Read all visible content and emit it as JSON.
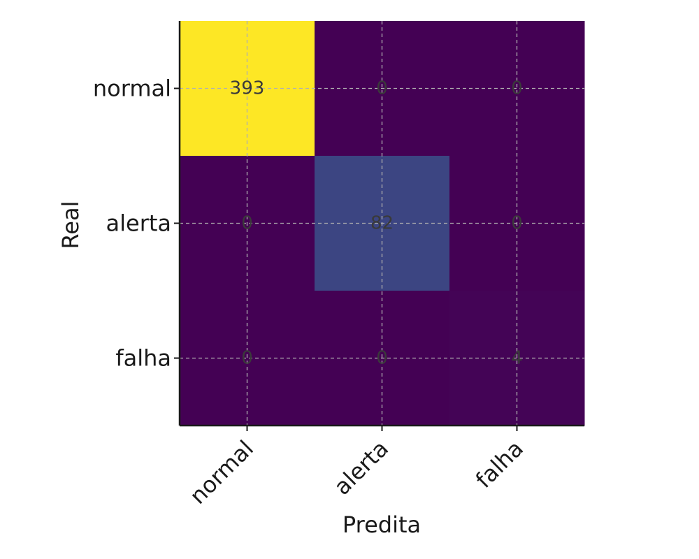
{
  "chart_data": {
    "type": "heatmap",
    "title": "",
    "xlabel": "Predita",
    "ylabel": "Real",
    "x_categories": [
      "normal",
      "alerta",
      "falha"
    ],
    "y_categories": [
      "normal",
      "alerta",
      "falha"
    ],
    "values": [
      [
        393,
        0,
        0
      ],
      [
        0,
        82,
        0
      ],
      [
        0,
        0,
        4
      ]
    ],
    "colormap": "viridis",
    "grid": true,
    "colors": {
      "low": "#440154",
      "mid": "#3b4a8a",
      "high": "#fde725",
      "grid": "#b0b0b0",
      "axis": "#1a1a1a"
    }
  }
}
